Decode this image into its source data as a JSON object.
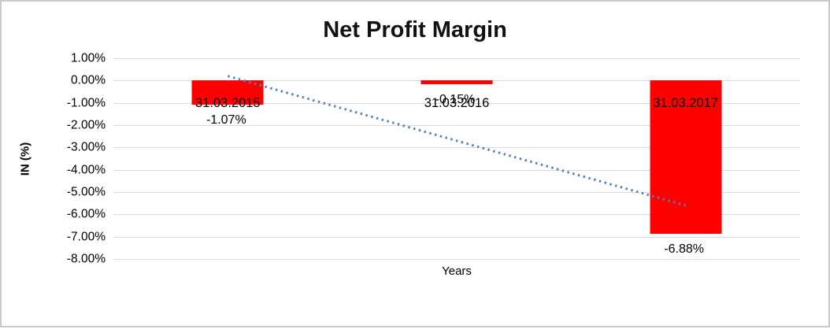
{
  "chart_data": {
    "type": "bar",
    "title": "Net Profit Margin",
    "xlabel": "Years",
    "ylabel": "IN (%)",
    "categories": [
      "31.03.2015",
      "31.03.2016",
      "31.03.2017"
    ],
    "values": [
      -1.07,
      -0.15,
      -6.88
    ],
    "data_labels": [
      "-1.07%",
      "-0.15%",
      "-6.88%"
    ],
    "ylim": [
      -8,
      1
    ],
    "ytick_values": [
      1,
      0,
      -1,
      -2,
      -3,
      -4,
      -5,
      -6,
      -7,
      -8
    ],
    "ytick_labels": [
      "1.00%",
      "0.00%",
      "-1.00%",
      "-2.00%",
      "-3.00%",
      "-4.00%",
      "-5.00%",
      "-6.00%",
      "-7.00%",
      "-8.00%"
    ],
    "grid": true,
    "legend": "none",
    "bar_color": "#ff0000",
    "gridline_color": "#d9d9d9",
    "trendline": {
      "type": "linear",
      "style": "dotted",
      "color": "#4f81bd",
      "start_value": 0.2,
      "end_value": -5.6
    }
  }
}
